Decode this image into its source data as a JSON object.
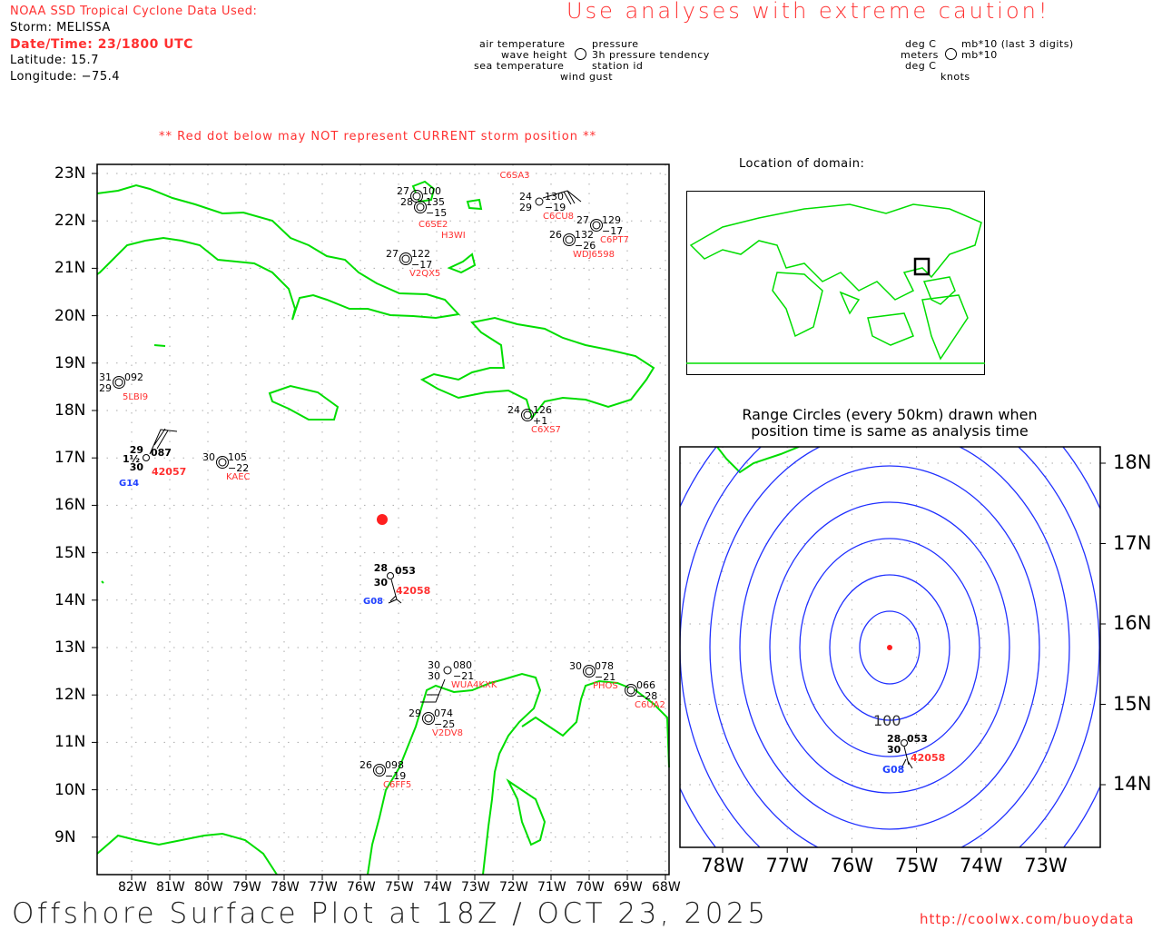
{
  "header": {
    "source": "NOAA SSD Tropical Cyclone Data Used:",
    "storm": "Storm: MELISSA",
    "datetime": "Date/Time: 23/1800 UTC",
    "latitude": "Latitude: 15.7",
    "longitude": "Longitude: −75.4",
    "caution": "Use analyses with extreme caution!",
    "red_dot_note": "** Red dot below may NOT represent CURRENT storm position **"
  },
  "legend": {
    "air_temperature": "air temperature",
    "wave_height": "wave height",
    "sea_temperature": "sea temperature",
    "pressure": "pressure",
    "pressure_tendency": "3h pressure tendency",
    "station_id": "station id",
    "wind_gust": "wind gust",
    "units_deg_c_1": "deg C",
    "units_meters": "meters",
    "units_deg_c_2": "deg C",
    "units_pressure": "mb*10 (last 3 digits)",
    "units_tendency": "mb*10",
    "units_knots": "knots"
  },
  "main_map": {
    "lat_labels": [
      "23N",
      "22N",
      "21N",
      "20N",
      "19N",
      "18N",
      "17N",
      "16N",
      "15N",
      "14N",
      "13N",
      "12N",
      "11N",
      "10N",
      "9N"
    ],
    "lon_labels": [
      "82W",
      "81W",
      "80W",
      "79W",
      "78W",
      "77W",
      "76W",
      "75W",
      "74W",
      "73W",
      "72W",
      "71W",
      "70W",
      "69W",
      "68W"
    ],
    "stations": [
      {
        "id": "",
        "air": "27",
        "pressure": "100",
        "tend": "",
        "sea": ""
      },
      {
        "id": "C6SE2",
        "air": "28",
        "pressure": "135",
        "tend": "−15",
        "sea": ""
      },
      {
        "id": "H3WI",
        "air": "",
        "pressure": "",
        "tend": "",
        "sea": ""
      },
      {
        "id": "C6SA3",
        "air": "",
        "pressure": "",
        "tend": "",
        "sea": ""
      },
      {
        "id": "C6CU8",
        "air": "24",
        "pressure": "130",
        "tend": "−19",
        "sea": "29"
      },
      {
        "id": "C6PT7",
        "air": "27",
        "pressure": "129",
        "tend": "−17",
        "sea": ""
      },
      {
        "id": "WDJ6598",
        "air": "26",
        "pressure": "132",
        "tend": "−26",
        "sea": ""
      },
      {
        "id": "V2QX5",
        "air": "27",
        "pressure": "122",
        "tend": "−17",
        "sea": ""
      },
      {
        "id": "5LBI9",
        "air": "31",
        "pressure": "092",
        "tend": "",
        "sea": "29"
      },
      {
        "id": "KAEC",
        "air": "30",
        "pressure": "105",
        "tend": "−22",
        "sea": ""
      },
      {
        "id": "C6XS7",
        "air": "24",
        "pressure": "126",
        "tend": "+1",
        "sea": ""
      },
      {
        "id": "WUA4KXK",
        "air": "30",
        "pressure": "080",
        "tend": "−21",
        "sea": "30"
      },
      {
        "id": "PHOS",
        "air": "30",
        "pressure": "078",
        "tend": "−21",
        "sea": ""
      },
      {
        "id": "C6UA2",
        "air": "",
        "pressure": "066",
        "tend": "−28",
        "sea": ""
      },
      {
        "id": "V2DV8",
        "air": "29",
        "pressure": "074",
        "tend": "−25",
        "sea": ""
      },
      {
        "id": "C6FF5",
        "air": "26",
        "pressure": "098",
        "tend": "−19",
        "sea": ""
      }
    ],
    "buoys": [
      {
        "id": "42057",
        "air": "29",
        "pressure": "087",
        "wave": "1½",
        "sea": "30",
        "gust": "G14"
      },
      {
        "id": "42058",
        "air": "28",
        "pressure": "053",
        "wave": "",
        "sea": "30",
        "gust": "G08"
      }
    ],
    "storm_color": "#ff2020"
  },
  "domain_map": {
    "title": "Location of domain:"
  },
  "range_map": {
    "title_line1": "Range Circles (every 50km) drawn when",
    "title_line2": "position time is same as analysis time",
    "lat_labels": [
      "18N",
      "17N",
      "16N",
      "15N",
      "14N"
    ],
    "lon_labels": [
      "78W",
      "77W",
      "76W",
      "75W",
      "74W",
      "73W"
    ],
    "circle_label": "100",
    "circle_count": 9,
    "buoy": {
      "id": "42058",
      "air": "28",
      "pressure": "053",
      "sea": "30",
      "gust": "G08"
    }
  },
  "footer": {
    "title": "Offshore Surface Plot at 18Z / OCT 23, 2025",
    "url": "http://coolwx.com/buoydata"
  },
  "colors": {
    "land": "#00dd00",
    "label_red": "#ff3030",
    "gust_blue": "#2040ff",
    "range_blue": "#2030ff"
  }
}
